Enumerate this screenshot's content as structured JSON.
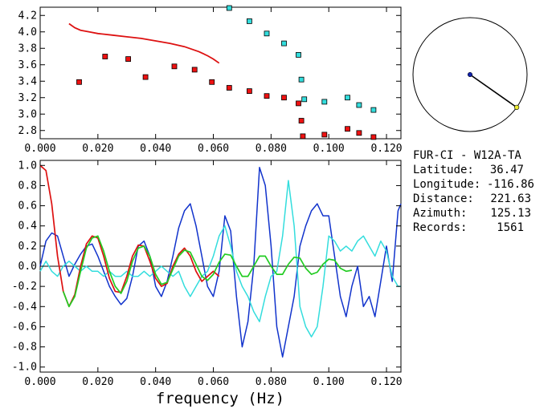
{
  "chart_data": [
    {
      "type": "scatter",
      "xlim": [
        0.0,
        0.125
      ],
      "ylim": [
        2.7,
        4.3
      ],
      "xticks": [
        "0.000",
        "0.020",
        "0.040",
        "0.060",
        "0.080",
        "0.100",
        "0.120"
      ],
      "yticks": [
        "2.8",
        "3.0",
        "3.2",
        "3.4",
        "3.6",
        "3.8",
        "4.0",
        "4.2"
      ],
      "series": [
        {
          "kind": "markers",
          "color": "#ee1111",
          "points": [
            [
              0.0135,
              3.39
            ],
            [
              0.0225,
              3.7
            ],
            [
              0.0305,
              3.67
            ],
            [
              0.0365,
              3.45
            ],
            [
              0.0465,
              3.58
            ],
            [
              0.0535,
              3.54
            ],
            [
              0.0595,
              3.39
            ],
            [
              0.0655,
              3.32
            ],
            [
              0.0725,
              3.28
            ],
            [
              0.0785,
              3.22
            ],
            [
              0.0845,
              3.2
            ],
            [
              0.0895,
              3.13
            ],
            [
              0.0905,
              2.92
            ],
            [
              0.091,
              2.73
            ],
            [
              0.0985,
              2.75
            ],
            [
              0.1065,
              2.82
            ],
            [
              0.1105,
              2.77
            ],
            [
              0.1155,
              2.72
            ]
          ]
        },
        {
          "kind": "markers",
          "color": "#33dddd",
          "points": [
            [
              0.0655,
              4.29
            ],
            [
              0.0725,
              4.13
            ],
            [
              0.0785,
              3.98
            ],
            [
              0.0845,
              3.86
            ],
            [
              0.0895,
              3.72
            ],
            [
              0.0905,
              3.42
            ],
            [
              0.0915,
              3.18
            ],
            [
              0.0985,
              3.15
            ],
            [
              0.1065,
              3.2
            ],
            [
              0.1105,
              3.11
            ],
            [
              0.1155,
              3.05
            ]
          ]
        },
        {
          "kind": "line",
          "color": "#dd1111",
          "x": [
            0.01,
            0.012,
            0.014,
            0.017,
            0.02,
            0.025,
            0.03,
            0.035,
            0.04,
            0.045,
            0.05,
            0.055,
            0.058,
            0.06,
            0.062
          ],
          "y": [
            4.1,
            4.05,
            4.02,
            4.0,
            3.98,
            3.96,
            3.94,
            3.92,
            3.89,
            3.86,
            3.82,
            3.76,
            3.71,
            3.67,
            3.62
          ]
        }
      ]
    },
    {
      "type": "line",
      "xlim": [
        0.0,
        0.125
      ],
      "ylim": [
        -1.05,
        1.05
      ],
      "xticks": [
        "0.000",
        "0.020",
        "0.040",
        "0.060",
        "0.080",
        "0.100",
        "0.120"
      ],
      "yticks": [
        "1.0",
        "0.8",
        "0.6",
        "0.4",
        "0.2",
        "0.0",
        "-0.2",
        "-0.4",
        "-0.6",
        "-0.8",
        "-1.0"
      ],
      "xlabel": "frequency (Hz)",
      "series": [
        {
          "color": "#1133cc",
          "x": [
            0.0,
            0.002,
            0.004,
            0.006,
            0.008,
            0.01,
            0.012,
            0.014,
            0.016,
            0.018,
            0.02,
            0.022,
            0.024,
            0.026,
            0.028,
            0.03,
            0.032,
            0.034,
            0.036,
            0.038,
            0.04,
            0.042,
            0.044,
            0.046,
            0.048,
            0.05,
            0.052,
            0.054,
            0.056,
            0.058,
            0.06,
            0.062,
            0.064,
            0.066,
            0.068,
            0.07,
            0.072,
            0.074,
            0.076,
            0.078,
            0.08,
            0.082,
            0.084,
            0.086,
            0.088,
            0.09,
            0.092,
            0.094,
            0.096,
            0.098,
            0.1,
            0.102,
            0.104,
            0.106,
            0.108,
            0.11,
            0.112,
            0.114,
            0.116,
            0.118,
            0.12,
            0.122,
            0.124,
            0.125
          ],
          "y": [
            0.0,
            0.25,
            0.33,
            0.3,
            0.1,
            -0.1,
            0.02,
            0.12,
            0.2,
            0.22,
            0.1,
            -0.05,
            -0.2,
            -0.3,
            -0.38,
            -0.32,
            -0.1,
            0.2,
            0.25,
            0.1,
            -0.2,
            -0.3,
            -0.15,
            0.1,
            0.38,
            0.55,
            0.62,
            0.4,
            0.1,
            -0.2,
            -0.3,
            -0.05,
            0.5,
            0.35,
            -0.3,
            -0.8,
            -0.55,
            0.0,
            0.98,
            0.8,
            0.2,
            -0.6,
            -0.9,
            -0.6,
            -0.3,
            0.2,
            0.4,
            0.55,
            0.62,
            0.5,
            0.5,
            0.1,
            -0.3,
            -0.5,
            -0.2,
            0.0,
            -0.4,
            -0.3,
            -0.5,
            -0.15,
            0.2,
            -0.15,
            0.55,
            0.62
          ]
        },
        {
          "color": "#33dddd",
          "x": [
            0.0,
            0.002,
            0.004,
            0.006,
            0.008,
            0.01,
            0.012,
            0.014,
            0.016,
            0.018,
            0.02,
            0.022,
            0.024,
            0.026,
            0.028,
            0.03,
            0.032,
            0.034,
            0.036,
            0.038,
            0.04,
            0.042,
            0.044,
            0.046,
            0.048,
            0.05,
            0.052,
            0.054,
            0.056,
            0.058,
            0.06,
            0.062,
            0.064,
            0.066,
            0.068,
            0.07,
            0.072,
            0.074,
            0.076,
            0.078,
            0.08,
            0.082,
            0.084,
            0.086,
            0.088,
            0.09,
            0.092,
            0.094,
            0.096,
            0.098,
            0.1,
            0.102,
            0.104,
            0.106,
            0.108,
            0.11,
            0.112,
            0.114,
            0.116,
            0.118,
            0.12,
            0.122,
            0.124,
            0.125
          ],
          "y": [
            -0.05,
            0.05,
            -0.05,
            -0.1,
            0.0,
            0.05,
            0.0,
            -0.05,
            0.0,
            -0.05,
            -0.05,
            -0.1,
            -0.05,
            -0.1,
            -0.1,
            -0.05,
            -0.1,
            -0.1,
            -0.05,
            -0.1,
            -0.05,
            0.0,
            -0.05,
            -0.1,
            -0.05,
            -0.2,
            -0.3,
            -0.2,
            -0.1,
            -0.05,
            0.1,
            0.3,
            0.4,
            0.2,
            -0.05,
            -0.2,
            -0.3,
            -0.45,
            -0.55,
            -0.3,
            -0.1,
            -0.05,
            0.3,
            0.85,
            0.4,
            -0.4,
            -0.6,
            -0.7,
            -0.6,
            -0.2,
            0.3,
            0.25,
            0.15,
            0.2,
            0.15,
            0.25,
            0.3,
            0.2,
            0.1,
            0.25,
            0.15,
            -0.1,
            -0.2,
            -0.2
          ]
        },
        {
          "color": "#dd1111",
          "x": [
            0.0,
            0.002,
            0.004,
            0.006,
            0.008,
            0.01,
            0.012,
            0.014,
            0.016,
            0.018,
            0.02,
            0.022,
            0.024,
            0.026,
            0.028,
            0.03,
            0.032,
            0.034,
            0.036,
            0.038,
            0.04,
            0.042,
            0.044,
            0.046,
            0.048,
            0.05,
            0.052,
            0.054,
            0.056,
            0.058,
            0.06,
            0.062
          ],
          "y": [
            1.0,
            0.95,
            0.62,
            0.1,
            -0.25,
            -0.4,
            -0.28,
            0.0,
            0.22,
            0.3,
            0.28,
            0.1,
            -0.12,
            -0.25,
            -0.26,
            -0.1,
            0.1,
            0.21,
            0.2,
            0.05,
            -0.12,
            -0.2,
            -0.17,
            0.0,
            0.12,
            0.18,
            0.1,
            -0.05,
            -0.15,
            -0.1,
            -0.05,
            -0.1
          ]
        },
        {
          "color": "#22cc22",
          "x": [
            0.008,
            0.01,
            0.012,
            0.014,
            0.016,
            0.018,
            0.02,
            0.022,
            0.024,
            0.026,
            0.028,
            0.03,
            0.032,
            0.034,
            0.036,
            0.038,
            0.04,
            0.042,
            0.044,
            0.046,
            0.048,
            0.05,
            0.052,
            0.054,
            0.056,
            0.058,
            0.06,
            0.062,
            0.064,
            0.066,
            0.068,
            0.07,
            0.072,
            0.074,
            0.076,
            0.078,
            0.08,
            0.082,
            0.084,
            0.086,
            0.088,
            0.09,
            0.092,
            0.094,
            0.096,
            0.098,
            0.1,
            0.102,
            0.104,
            0.106,
            0.108
          ],
          "y": [
            -0.25,
            -0.4,
            -0.3,
            -0.05,
            0.18,
            0.28,
            0.3,
            0.15,
            -0.05,
            -0.2,
            -0.27,
            -0.15,
            0.05,
            0.18,
            0.2,
            0.1,
            -0.08,
            -0.18,
            -0.16,
            -0.03,
            0.1,
            0.16,
            0.14,
            0.02,
            -0.1,
            -0.14,
            -0.08,
            0.04,
            0.12,
            0.11,
            0.0,
            -0.1,
            -0.1,
            0.0,
            0.1,
            0.1,
            0.0,
            -0.08,
            -0.08,
            0.02,
            0.09,
            0.08,
            -0.02,
            -0.08,
            -0.06,
            0.02,
            0.07,
            0.06,
            -0.02,
            -0.05,
            -0.04
          ]
        }
      ]
    }
  ],
  "map": {
    "station_color": "#1122aa",
    "event_color": "#eeee33",
    "azimuth_deg": 125.13
  },
  "info": {
    "pair": "FUR-CI - W12A-TA",
    "rows": [
      {
        "label": "Latitude:",
        "value": "36.47"
      },
      {
        "label": "Longitude:",
        "value": "-116.86"
      },
      {
        "label": "Distance:",
        "value": "221.63"
      },
      {
        "label": "Azimuth:",
        "value": "125.13"
      },
      {
        "label": "Records:",
        "value": "1561"
      }
    ]
  }
}
